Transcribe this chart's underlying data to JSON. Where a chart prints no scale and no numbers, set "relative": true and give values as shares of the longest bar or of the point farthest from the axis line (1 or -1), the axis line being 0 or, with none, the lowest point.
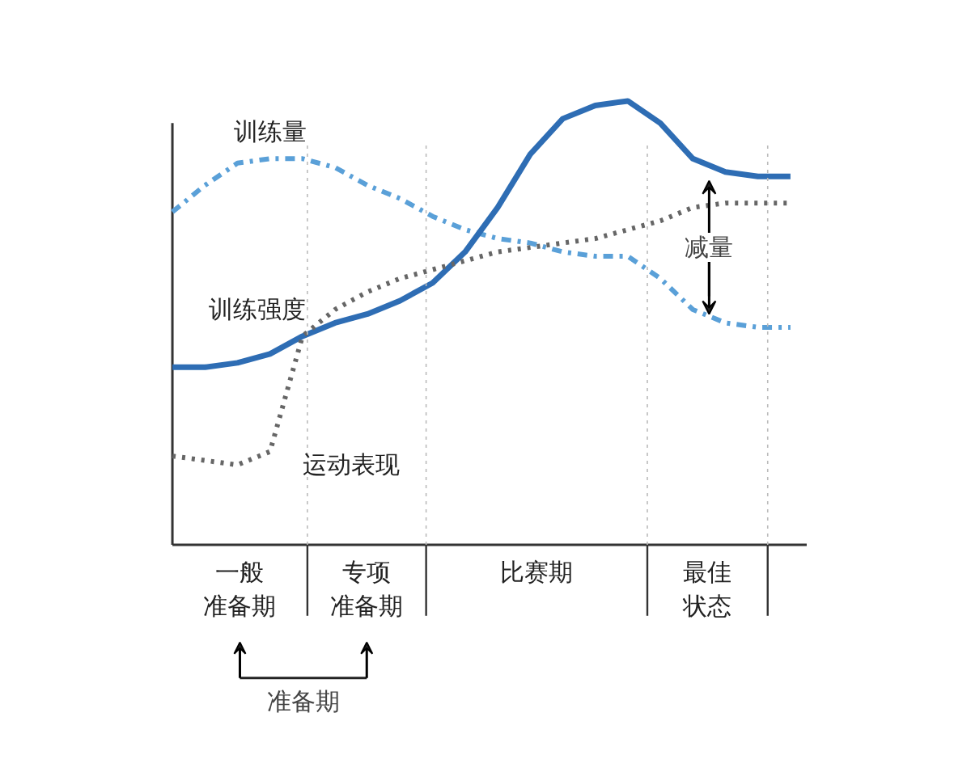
{
  "chart_data": {
    "type": "line",
    "relative": true,
    "categories": [
      null,
      null,
      null,
      null,
      null,
      null,
      null,
      null,
      null,
      null,
      null,
      null,
      null,
      null,
      null,
      null,
      null,
      null,
      null,
      null
    ],
    "series": [
      {
        "name": "训练量",
        "color": "#5aa0d8",
        "line_style": "dashed",
        "values": [
          0.75,
          0.81,
          0.86,
          0.87,
          0.87,
          0.85,
          0.81,
          0.78,
          0.74,
          0.71,
          0.69,
          0.68,
          0.66,
          0.65,
          0.65,
          0.6,
          0.53,
          0.5,
          0.49,
          0.49
        ]
      },
      {
        "name": "训练强度",
        "color": "#2e6db4",
        "line_style": "solid",
        "values": [
          0.4,
          0.4,
          0.41,
          0.43,
          0.47,
          0.5,
          0.52,
          0.55,
          0.59,
          0.66,
          0.76,
          0.88,
          0.96,
          0.99,
          1.0,
          0.95,
          0.87,
          0.84,
          0.83,
          0.83
        ]
      },
      {
        "name": "运动表现",
        "color": "#666666",
        "line_style": "dotted",
        "values": [
          0.2,
          0.19,
          0.18,
          0.21,
          0.47,
          0.53,
          0.57,
          0.6,
          0.62,
          0.64,
          0.66,
          0.67,
          0.68,
          0.69,
          0.71,
          0.73,
          0.76,
          0.77,
          0.77,
          0.77
        ]
      }
    ],
    "annotations": [
      "减量",
      "准备期",
      "一般准备期",
      "专项准备期",
      "比赛期",
      "最佳状态"
    ],
    "legend": false,
    "grid": false,
    "marker": "none"
  }
}
